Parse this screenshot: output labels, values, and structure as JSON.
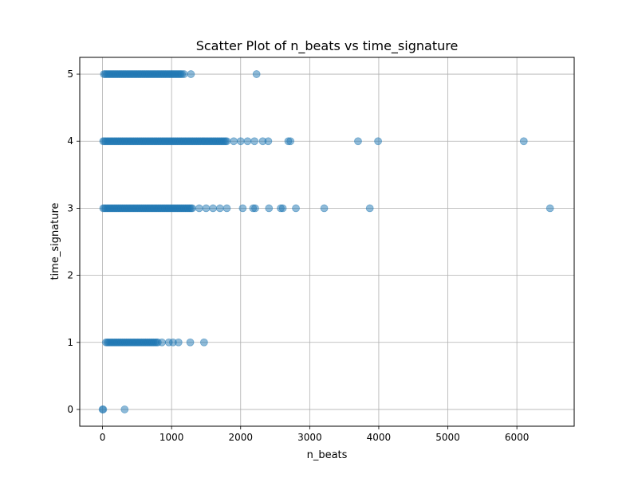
{
  "chart_data": {
    "type": "scatter",
    "title": "Scatter Plot of n_beats vs time_signature",
    "xlabel": "n_beats",
    "ylabel": "time_signature",
    "xlim": [
      -330,
      6830
    ],
    "ylim": [
      -0.25,
      5.25
    ],
    "xticks": [
      0,
      1000,
      2000,
      3000,
      4000,
      5000,
      6000
    ],
    "yticks": [
      0,
      1,
      2,
      3,
      4,
      5
    ],
    "grid": true,
    "marker_color": "#1f77b4",
    "marker_alpha": 0.5,
    "dense_runs": [
      {
        "y": 0,
        "x_start": 0,
        "x_end": 10
      },
      {
        "y": 1,
        "x_start": 50,
        "x_end": 800
      },
      {
        "y": 3,
        "x_start": 10,
        "x_end": 1300
      },
      {
        "y": 4,
        "x_start": 10,
        "x_end": 1800
      },
      {
        "y": 5,
        "x_start": 20,
        "x_end": 1150
      }
    ],
    "sparse_points": {
      "0": [
        320
      ],
      "1": [
        860,
        960,
        1020,
        1100,
        1270,
        1470
      ],
      "3": [
        1400,
        1500,
        1600,
        1700,
        1800,
        2030,
        2180,
        2210,
        2410,
        2580,
        2610,
        2800,
        3210,
        3870,
        6480
      ],
      "4": [
        1900,
        2000,
        2100,
        2200,
        2320,
        2400,
        2690,
        2720,
        3700,
        3990,
        6100
      ],
      "5": [
        1180,
        1280,
        2230
      ]
    }
  }
}
